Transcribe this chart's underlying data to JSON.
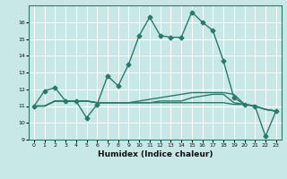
{
  "xlabel": "Humidex (Indice chaleur)",
  "x": [
    0,
    1,
    2,
    3,
    4,
    5,
    6,
    7,
    8,
    9,
    10,
    11,
    12,
    13,
    14,
    15,
    16,
    17,
    18,
    19,
    20,
    21,
    22,
    23
  ],
  "line1": [
    11.0,
    11.9,
    12.1,
    11.3,
    11.3,
    10.3,
    11.1,
    12.8,
    12.2,
    13.5,
    15.2,
    16.3,
    15.2,
    15.1,
    15.1,
    16.6,
    16.0,
    15.5,
    13.7,
    11.5,
    11.1,
    11.0,
    9.2,
    10.7
  ],
  "flat1": [
    11.0,
    11.0,
    11.3,
    11.3,
    11.3,
    11.3,
    11.2,
    11.2,
    11.2,
    11.2,
    11.2,
    11.2,
    11.2,
    11.2,
    11.2,
    11.2,
    11.2,
    11.2,
    11.2,
    11.1,
    11.1,
    11.0,
    10.8,
    10.7
  ],
  "flat2": [
    11.0,
    11.0,
    11.3,
    11.3,
    11.3,
    11.3,
    11.2,
    11.2,
    11.2,
    11.2,
    11.2,
    11.2,
    11.3,
    11.3,
    11.3,
    11.5,
    11.6,
    11.7,
    11.7,
    11.2,
    11.1,
    11.0,
    10.8,
    10.7
  ],
  "flat3": [
    11.0,
    11.0,
    11.3,
    11.3,
    11.3,
    11.3,
    11.2,
    11.2,
    11.2,
    11.2,
    11.3,
    11.4,
    11.5,
    11.6,
    11.7,
    11.8,
    11.8,
    11.8,
    11.8,
    11.7,
    11.1,
    11.0,
    10.8,
    10.7
  ],
  "line_color": "#2a7a6a",
  "bg_color": "#c8e8e8",
  "grid_color": "#ffffff",
  "ylim": [
    9,
    17
  ],
  "yticks": [
    9,
    10,
    11,
    12,
    13,
    14,
    15,
    16
  ],
  "xticks": [
    0,
    1,
    2,
    3,
    4,
    5,
    6,
    7,
    8,
    9,
    10,
    11,
    12,
    13,
    14,
    15,
    16,
    17,
    18,
    19,
    20,
    21,
    22,
    23
  ],
  "marker": "D",
  "markersize": 2.5,
  "linewidth": 1.0
}
